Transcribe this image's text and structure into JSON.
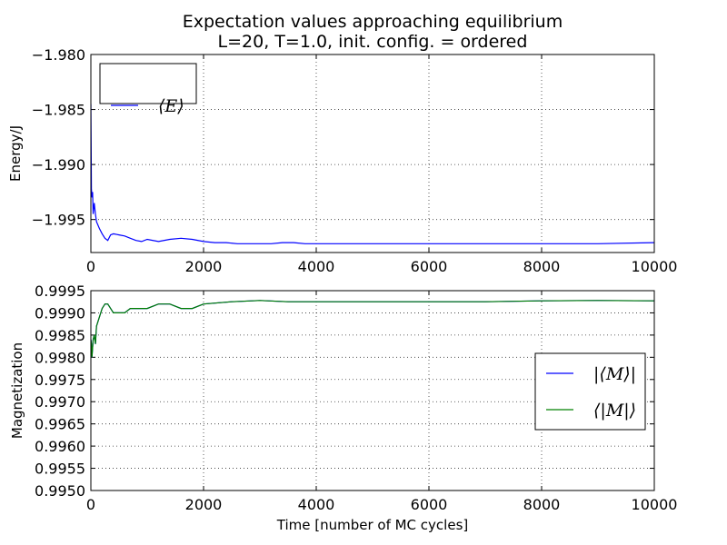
{
  "title": {
    "line1": "Expectation values approaching equilibrium",
    "line2": "L=20, T=1.0, init. config. = ordered"
  },
  "chart_data": [
    {
      "type": "line",
      "ylabel": "Energy/J",
      "xlabel": "",
      "xlim": [
        0,
        10000
      ],
      "ylim": [
        -1.998,
        -1.98
      ],
      "xticks": [
        "0",
        "2000",
        "4000",
        "6000",
        "8000",
        "10000"
      ],
      "yticks": [
        "−1.980",
        "−1.985",
        "−1.990",
        "−1.995"
      ],
      "grid": true,
      "legend": "top-left",
      "series": [
        {
          "name": "⟨E⟩",
          "color": "#0000ff",
          "x": [
            0,
            10,
            20,
            30,
            40,
            60,
            80,
            100,
            150,
            200,
            250,
            300,
            350,
            400,
            500,
            600,
            700,
            800,
            900,
            1000,
            1200,
            1400,
            1600,
            1800,
            2000,
            2200,
            2400,
            2600,
            2800,
            3000,
            3200,
            3400,
            3600,
            3800,
            4000,
            5000,
            6000,
            7000,
            8000,
            9000,
            10000
          ],
          "y": [
            -1.9845,
            -1.9922,
            -1.993,
            -1.9925,
            -1.9945,
            -1.9935,
            -1.9945,
            -1.9952,
            -1.9958,
            -1.9963,
            -1.9967,
            -1.9969,
            -1.9964,
            -1.9963,
            -1.9964,
            -1.9965,
            -1.9967,
            -1.9969,
            -1.997,
            -1.9968,
            -1.997,
            -1.9968,
            -1.9967,
            -1.9968,
            -1.997,
            -1.9971,
            -1.9971,
            -1.9972,
            -1.9972,
            -1.9972,
            -1.9972,
            -1.9971,
            -1.9971,
            -1.9972,
            -1.9972,
            -1.9972,
            -1.9972,
            -1.9972,
            -1.9972,
            -1.9972,
            -1.9971
          ]
        }
      ]
    },
    {
      "type": "line",
      "ylabel": "Magnetization",
      "xlabel": "Time [number of MC cycles]",
      "xlim": [
        0,
        10000
      ],
      "ylim": [
        0.995,
        0.9995
      ],
      "xticks": [
        "0",
        "2000",
        "4000",
        "6000",
        "8000",
        "10000"
      ],
      "yticks": [
        "0.9995",
        "0.9990",
        "0.9985",
        "0.9980",
        "0.9975",
        "0.9970",
        "0.9965",
        "0.9960",
        "0.9955",
        "0.9950"
      ],
      "grid": true,
      "legend": "center-right",
      "series": [
        {
          "name": "|⟨M⟩|",
          "color": "#0000ff",
          "x": [
            0,
            10,
            20,
            40,
            60,
            80,
            100,
            150,
            200,
            250,
            300,
            400,
            500,
            600,
            700,
            800,
            900,
            1000,
            1200,
            1400,
            1600,
            1800,
            2000,
            2500,
            3000,
            3500,
            4000,
            5000,
            6000,
            7000,
            8000,
            9000,
            10000
          ],
          "y": [
            0.9984,
            0.9983,
            0.998,
            0.9984,
            0.9985,
            0.9983,
            0.9987,
            0.9989,
            0.9991,
            0.9992,
            0.9992,
            0.999,
            0.999,
            0.999,
            0.9991,
            0.9991,
            0.9991,
            0.9991,
            0.9992,
            0.9992,
            0.9991,
            0.9991,
            0.9992,
            0.99925,
            0.99928,
            0.99925,
            0.99925,
            0.99925,
            0.99925,
            0.99925,
            0.99927,
            0.99928,
            0.99927
          ]
        },
        {
          "name": "⟨|M|⟩",
          "color": "#008000",
          "x": [
            0,
            10,
            20,
            40,
            60,
            80,
            100,
            150,
            200,
            250,
            300,
            400,
            500,
            600,
            700,
            800,
            900,
            1000,
            1200,
            1400,
            1600,
            1800,
            2000,
            2500,
            3000,
            3500,
            4000,
            5000,
            6000,
            7000,
            8000,
            9000,
            10000
          ],
          "y": [
            0.9984,
            0.9983,
            0.998,
            0.9984,
            0.9985,
            0.9983,
            0.9987,
            0.9989,
            0.9991,
            0.9992,
            0.9992,
            0.999,
            0.999,
            0.999,
            0.9991,
            0.9991,
            0.9991,
            0.9991,
            0.9992,
            0.9992,
            0.9991,
            0.9991,
            0.9992,
            0.99925,
            0.99928,
            0.99925,
            0.99925,
            0.99925,
            0.99925,
            0.99925,
            0.99927,
            0.99928,
            0.99927
          ]
        }
      ]
    }
  ]
}
